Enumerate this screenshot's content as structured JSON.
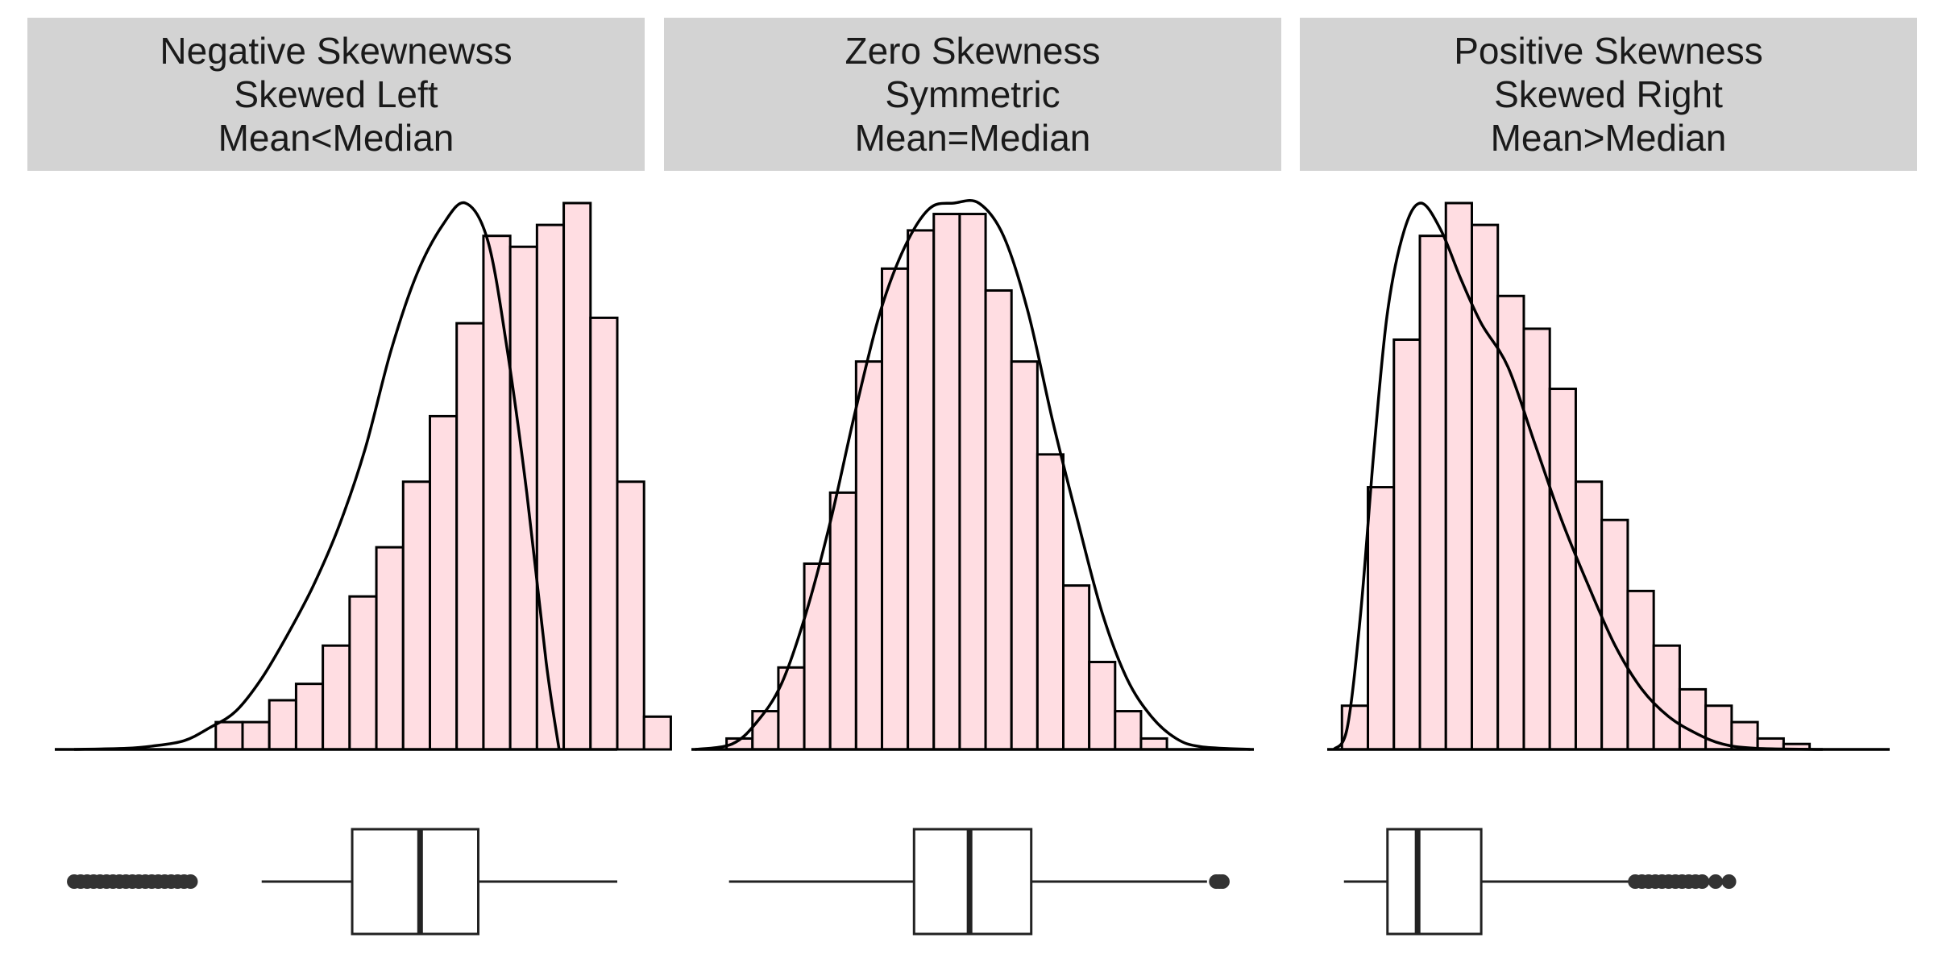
{
  "chart_data": [
    {
      "type": "histogram",
      "panel_title": [
        "Negative Skewnewss",
        "Skewed Left",
        "Mean<Median"
      ],
      "colors": {
        "bar_fill": "#ffdde2",
        "bar_stroke": "#000000",
        "density": "#000000"
      },
      "x_range": [
        -7.1,
        1.6
      ],
      "bin_width": 0.414,
      "bins_start": -4.61,
      "counts": [
        0.05,
        0.05,
        0.09,
        0.12,
        0.19,
        0.28,
        0.37,
        0.49,
        0.61,
        0.78,
        0.94,
        0.92,
        0.96,
        1.0,
        0.79,
        0.49,
        0.06
      ],
      "density": [
        [
          -6.8,
          0
        ],
        [
          -6.0,
          0.002
        ],
        [
          -5.6,
          0.006
        ],
        [
          -5.1,
          0.016
        ],
        [
          -4.7,
          0.04
        ],
        [
          -4.3,
          0.07
        ],
        [
          -3.9,
          0.13
        ],
        [
          -3.5,
          0.21
        ],
        [
          -3.1,
          0.3
        ],
        [
          -2.7,
          0.41
        ],
        [
          -2.3,
          0.55
        ],
        [
          -1.9,
          0.73
        ],
        [
          -1.5,
          0.87
        ],
        [
          -1.1,
          0.96
        ],
        [
          -0.75,
          1.0
        ],
        [
          -0.4,
          0.93
        ],
        [
          -0.1,
          0.73
        ],
        [
          0.2,
          0.47
        ],
        [
          0.5,
          0.16
        ],
        [
          0.7,
          0.0
        ]
      ],
      "boxplot": {
        "q1": -2.5,
        "median": -1.45,
        "q3": -0.55,
        "whisker_low": -3.9,
        "whisker_high": 1.6,
        "outliers": [
          -6.8,
          -6.7,
          -6.6,
          -6.5,
          -6.4,
          -6.3,
          -6.2,
          -6.1,
          -6.0,
          -5.9,
          -5.8,
          -5.7,
          -5.6,
          -5.5,
          -5.4,
          -5.3,
          -5.2,
          -5.1,
          -5.0
        ]
      }
    },
    {
      "type": "histogram",
      "panel_title": [
        "Zero Skewness",
        "Symmetric",
        "Mean=Median"
      ],
      "colors": {
        "bar_fill": "#ffdde2",
        "bar_stroke": "#000000",
        "density": "#000000"
      },
      "x_range": [
        -4.56,
        4.56
      ],
      "bin_width": 0.42,
      "bins_start": -3.99,
      "counts": [
        0.02,
        0.07,
        0.15,
        0.34,
        0.47,
        0.71,
        0.88,
        0.95,
        0.98,
        0.98,
        0.84,
        0.71,
        0.54,
        0.3,
        0.16,
        0.07,
        0.02
      ],
      "density": [
        [
          -4.5,
          0
        ],
        [
          -3.9,
          0.01
        ],
        [
          -3.5,
          0.05
        ],
        [
          -3.1,
          0.12
        ],
        [
          -2.7,
          0.25
        ],
        [
          -2.3,
          0.42
        ],
        [
          -1.9,
          0.62
        ],
        [
          -1.5,
          0.8
        ],
        [
          -1.1,
          0.92
        ],
        [
          -0.7,
          0.99
        ],
        [
          -0.3,
          1.0
        ],
        [
          0.1,
          1.0
        ],
        [
          0.5,
          0.94
        ],
        [
          0.9,
          0.8
        ],
        [
          1.3,
          0.6
        ],
        [
          1.7,
          0.42
        ],
        [
          2.1,
          0.25
        ],
        [
          2.5,
          0.13
        ],
        [
          2.9,
          0.06
        ],
        [
          3.3,
          0.02
        ],
        [
          3.7,
          0.005
        ],
        [
          4.5,
          0
        ]
      ],
      "boxplot": {
        "q1": -0.95,
        "median": -0.05,
        "q3": 0.95,
        "whisker_low": -3.95,
        "whisker_high": 3.8,
        "outliers": [
          3.95,
          4.0,
          4.05
        ]
      }
    },
    {
      "type": "histogram",
      "panel_title": [
        "Positive Skewness",
        "Skewed Right",
        "Mean>Median"
      ],
      "colors": {
        "bar_fill": "#ffdde2",
        "bar_stroke": "#000000",
        "density": "#000000"
      },
      "x_range": [
        -1.4,
        7.0
      ],
      "bin_width": 0.388,
      "bins_start": -1.18,
      "counts": [
        0.08,
        0.48,
        0.75,
        0.94,
        1.0,
        0.96,
        0.83,
        0.77,
        0.66,
        0.49,
        0.42,
        0.29,
        0.19,
        0.11,
        0.08,
        0.05,
        0.02,
        0.01
      ],
      "density": [
        [
          -1.3,
          0
        ],
        [
          -1.1,
          0.04
        ],
        [
          -0.9,
          0.25
        ],
        [
          -0.7,
          0.55
        ],
        [
          -0.5,
          0.8
        ],
        [
          -0.25,
          0.95
        ],
        [
          0.0,
          1.0
        ],
        [
          0.3,
          0.95
        ],
        [
          0.6,
          0.86
        ],
        [
          0.9,
          0.78
        ],
        [
          1.3,
          0.7
        ],
        [
          1.7,
          0.56
        ],
        [
          2.1,
          0.42
        ],
        [
          2.5,
          0.3
        ],
        [
          2.9,
          0.19
        ],
        [
          3.3,
          0.11
        ],
        [
          3.7,
          0.06
        ],
        [
          4.1,
          0.03
        ],
        [
          4.5,
          0.01
        ],
        [
          5.0,
          0.002
        ],
        [
          6.0,
          0
        ]
      ],
      "boxplot": {
        "q1": -0.5,
        "median": -0.05,
        "q3": 0.9,
        "whisker_low": -1.15,
        "whisker_high": 3.15,
        "outliers": [
          3.2,
          3.3,
          3.4,
          3.5,
          3.6,
          3.7,
          3.8,
          3.9,
          4.0,
          4.1,
          4.2,
          4.4,
          4.6
        ]
      }
    }
  ]
}
